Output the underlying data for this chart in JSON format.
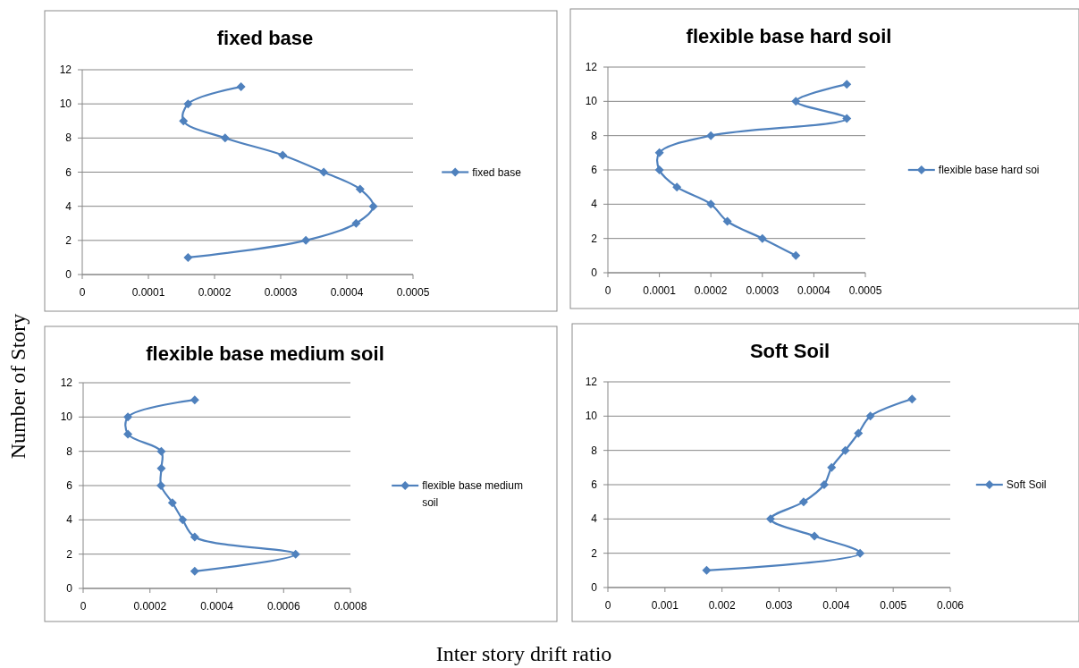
{
  "chart_data": [
    {
      "type": "line",
      "title": "fixed base",
      "ylabel": "Number of Story",
      "xlabel": "Inter story drift ratio",
      "xlim": [
        0,
        0.0005
      ],
      "xticks": [
        0,
        0.0001,
        0.0002,
        0.0003,
        0.0004,
        0.0005
      ],
      "ylim": [
        0,
        12
      ],
      "yticks": [
        0,
        2,
        4,
        6,
        8,
        10,
        12
      ],
      "grid": "y",
      "legend": "right",
      "marker": "diamond",
      "series": [
        {
          "name": "fixed base",
          "color": "#4f81bd",
          "x": [
            0.00016,
            0.000338,
            0.000414,
            0.00044,
            0.00042,
            0.000365,
            0.000303,
            0.000216,
            0.000153,
            0.00016,
            0.00024
          ],
          "values": [
            1,
            2,
            3,
            4,
            5,
            6,
            7,
            8,
            9,
            10,
            11
          ]
        }
      ]
    },
    {
      "type": "line",
      "title": "flexible base hard soil",
      "xlim": [
        0,
        0.0005
      ],
      "xticks": [
        0,
        0.0001,
        0.0002,
        0.0003,
        0.0004,
        0.0005
      ],
      "ylim": [
        0,
        12
      ],
      "yticks": [
        0,
        2,
        4,
        6,
        8,
        10,
        12
      ],
      "grid": "y",
      "legend": "right",
      "marker": "diamond",
      "series": [
        {
          "name": "flexible base hard soi",
          "color": "#4f81bd",
          "x": [
            0.000365,
            0.0003,
            0.000232,
            0.0002,
            0.000134,
            0.0001,
            0.0001,
            0.0002,
            0.000464,
            0.000365,
            0.000464
          ],
          "values": [
            1,
            2,
            3,
            4,
            5,
            6,
            7,
            8,
            9,
            10,
            11
          ]
        }
      ]
    },
    {
      "type": "line",
      "title": "flexible base medium soil",
      "xlim": [
        0,
        0.0008
      ],
      "xticks": [
        0,
        0.0002,
        0.0004,
        0.0006,
        0.0008
      ],
      "ylim": [
        0,
        12
      ],
      "yticks": [
        0,
        2,
        4,
        6,
        8,
        10,
        12
      ],
      "grid": "y",
      "legend": "right",
      "marker": "diamond",
      "series": [
        {
          "name": "flexible base medium soil",
          "color": "#4f81bd",
          "x": [
            0.000334,
            0.000636,
            0.000334,
            0.000298,
            0.000267,
            0.000233,
            0.000234,
            0.000234,
            0.000134,
            0.000134,
            0.000334
          ],
          "values": [
            1,
            2,
            3,
            4,
            5,
            6,
            7,
            8,
            9,
            10,
            11
          ]
        }
      ]
    },
    {
      "type": "line",
      "title": "Soft Soil",
      "xlim": [
        0,
        0.006
      ],
      "xticks": [
        0,
        0.001,
        0.002,
        0.003,
        0.004,
        0.005,
        0.006
      ],
      "ylim": [
        0,
        12
      ],
      "yticks": [
        0,
        2,
        4,
        6,
        8,
        10,
        12
      ],
      "grid": "y",
      "legend": "right",
      "marker": "diamond",
      "series": [
        {
          "name": "Soft Soil",
          "color": "#4f81bd",
          "x": [
            0.00173,
            0.00442,
            0.00362,
            0.00285,
            0.00343,
            0.00379,
            0.00392,
            0.00416,
            0.00439,
            0.0046,
            0.00533
          ],
          "values": [
            1,
            2,
            3,
            4,
            5,
            6,
            7,
            8,
            9,
            10,
            11
          ]
        }
      ]
    }
  ]
}
